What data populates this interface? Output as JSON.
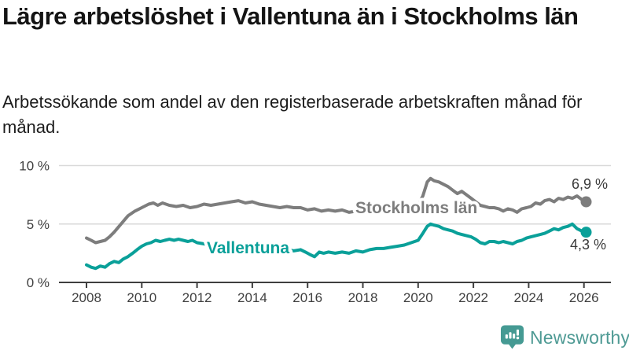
{
  "title": "Lägre arbetslöshet i Vallentuna än i Stockholms län",
  "subtitle": "Arbetssökande som andel av den registerbaserade arbetskraften månad för månad.",
  "branding": {
    "logo_text": "Newsworthy",
    "logo_icon": "newsworthy-speech-bubble-bars-icon",
    "logo_text_color": "#4e9a94",
    "logo_icon_color": "#459a93"
  },
  "colors": {
    "stockholm_line": "#7d7d7d",
    "vallentuna_line": "#0aa099",
    "axis": "#3f3f3f",
    "gridline": "#d9d9d9",
    "end_label_text": "#3a3a3a"
  },
  "chart_data": {
    "type": "line",
    "title": "Lägre arbetslöshet i Vallentuna än i Stockholms län",
    "subtitle": "Arbetssökande som andel av den registerbaserade arbetskraften månad för månad.",
    "xlabel": "",
    "ylabel": "",
    "xlim": [
      2007.0,
      2027.0
    ],
    "ylim": [
      0,
      10
    ],
    "grid": "horizontal",
    "legend_position": "inline-on-line",
    "x_axis": {
      "ticks": [
        "2008",
        "2010",
        "2012",
        "2014",
        "2016",
        "2018",
        "2020",
        "2022",
        "2024",
        "2026"
      ]
    },
    "y_axis": {
      "ticks": [
        {
          "value": 0,
          "label": "0 %"
        },
        {
          "value": 5,
          "label": "5 %"
        },
        {
          "value": 10,
          "label": "10 %"
        }
      ]
    },
    "series": [
      {
        "name": "Stockholms län",
        "color": "#7d7d7d",
        "end_label": "6,9 %",
        "latest_value_pct": 6.9,
        "points": [
          [
            2008.0,
            3.8
          ],
          [
            2008.17,
            3.6
          ],
          [
            2008.33,
            3.4
          ],
          [
            2008.5,
            3.5
          ],
          [
            2008.67,
            3.6
          ],
          [
            2008.83,
            3.9
          ],
          [
            2009.0,
            4.3
          ],
          [
            2009.25,
            5.0
          ],
          [
            2009.5,
            5.7
          ],
          [
            2009.75,
            6.1
          ],
          [
            2010.0,
            6.4
          ],
          [
            2010.25,
            6.7
          ],
          [
            2010.42,
            6.8
          ],
          [
            2010.58,
            6.6
          ],
          [
            2010.75,
            6.8
          ],
          [
            2011.0,
            6.6
          ],
          [
            2011.25,
            6.5
          ],
          [
            2011.5,
            6.6
          ],
          [
            2011.75,
            6.4
          ],
          [
            2012.0,
            6.5
          ],
          [
            2012.25,
            6.7
          ],
          [
            2012.5,
            6.6
          ],
          [
            2012.75,
            6.7
          ],
          [
            2013.0,
            6.8
          ],
          [
            2013.25,
            6.9
          ],
          [
            2013.5,
            7.0
          ],
          [
            2013.75,
            6.8
          ],
          [
            2014.0,
            6.9
          ],
          [
            2014.25,
            6.7
          ],
          [
            2014.5,
            6.6
          ],
          [
            2014.75,
            6.5
          ],
          [
            2015.0,
            6.4
          ],
          [
            2015.25,
            6.5
          ],
          [
            2015.5,
            6.4
          ],
          [
            2015.75,
            6.4
          ],
          [
            2016.0,
            6.2
          ],
          [
            2016.25,
            6.3
          ],
          [
            2016.5,
            6.1
          ],
          [
            2016.75,
            6.2
          ],
          [
            2017.0,
            6.1
          ],
          [
            2017.25,
            6.2
          ],
          [
            2017.5,
            6.0
          ],
          [
            2017.75,
            6.1
          ],
          [
            2018.0,
            6.0
          ],
          [
            2018.25,
            6.1
          ],
          [
            2018.5,
            6.0
          ],
          [
            2018.75,
            6.0
          ],
          [
            2019.0,
            6.1
          ],
          [
            2019.25,
            6.0
          ],
          [
            2019.5,
            6.1
          ],
          [
            2019.75,
            6.3
          ],
          [
            2020.0,
            6.6
          ],
          [
            2020.17,
            7.4
          ],
          [
            2020.33,
            8.6
          ],
          [
            2020.45,
            8.9
          ],
          [
            2020.58,
            8.7
          ],
          [
            2020.75,
            8.6
          ],
          [
            2020.92,
            8.4
          ],
          [
            2021.08,
            8.2
          ],
          [
            2021.25,
            7.9
          ],
          [
            2021.42,
            7.6
          ],
          [
            2021.58,
            7.8
          ],
          [
            2021.75,
            7.5
          ],
          [
            2021.92,
            7.2
          ],
          [
            2022.08,
            6.9
          ],
          [
            2022.25,
            6.6
          ],
          [
            2022.42,
            6.5
          ],
          [
            2022.58,
            6.4
          ],
          [
            2022.75,
            6.4
          ],
          [
            2022.92,
            6.3
          ],
          [
            2023.08,
            6.1
          ],
          [
            2023.25,
            6.3
          ],
          [
            2023.42,
            6.2
          ],
          [
            2023.58,
            6.0
          ],
          [
            2023.75,
            6.3
          ],
          [
            2023.92,
            6.4
          ],
          [
            2024.08,
            6.5
          ],
          [
            2024.25,
            6.8
          ],
          [
            2024.42,
            6.7
          ],
          [
            2024.58,
            7.0
          ],
          [
            2024.75,
            7.1
          ],
          [
            2024.92,
            6.9
          ],
          [
            2025.08,
            7.2
          ],
          [
            2025.25,
            7.1
          ],
          [
            2025.42,
            7.3
          ],
          [
            2025.58,
            7.2
          ],
          [
            2025.75,
            7.4
          ],
          [
            2025.92,
            7.1
          ],
          [
            2026.08,
            6.9
          ]
        ]
      },
      {
        "name": "Vallentuna",
        "color": "#0aa099",
        "end_label": "4,3 %",
        "latest_value_pct": 4.3,
        "points": [
          [
            2008.0,
            1.5
          ],
          [
            2008.17,
            1.3
          ],
          [
            2008.33,
            1.2
          ],
          [
            2008.5,
            1.4
          ],
          [
            2008.67,
            1.3
          ],
          [
            2008.83,
            1.6
          ],
          [
            2009.0,
            1.8
          ],
          [
            2009.17,
            1.7
          ],
          [
            2009.33,
            2.0
          ],
          [
            2009.5,
            2.2
          ],
          [
            2009.67,
            2.5
          ],
          [
            2009.83,
            2.8
          ],
          [
            2010.0,
            3.1
          ],
          [
            2010.17,
            3.3
          ],
          [
            2010.33,
            3.4
          ],
          [
            2010.5,
            3.6
          ],
          [
            2010.67,
            3.5
          ],
          [
            2010.83,
            3.6
          ],
          [
            2011.0,
            3.7
          ],
          [
            2011.17,
            3.6
          ],
          [
            2011.33,
            3.7
          ],
          [
            2011.5,
            3.6
          ],
          [
            2011.67,
            3.5
          ],
          [
            2011.83,
            3.6
          ],
          [
            2012.0,
            3.4
          ],
          [
            2012.25,
            3.3
          ],
          [
            2012.5,
            3.2
          ],
          [
            2012.75,
            3.1
          ],
          [
            2013.0,
            3.2
          ],
          [
            2013.25,
            3.3
          ],
          [
            2013.5,
            3.2
          ],
          [
            2013.75,
            3.1
          ],
          [
            2014.0,
            3.1
          ],
          [
            2014.25,
            3.0
          ],
          [
            2014.5,
            2.9
          ],
          [
            2014.75,
            2.9
          ],
          [
            2015.0,
            2.8
          ],
          [
            2015.25,
            2.8
          ],
          [
            2015.5,
            2.7
          ],
          [
            2015.75,
            2.8
          ],
          [
            2015.92,
            2.6
          ],
          [
            2016.08,
            2.4
          ],
          [
            2016.25,
            2.2
          ],
          [
            2016.42,
            2.6
          ],
          [
            2016.58,
            2.5
          ],
          [
            2016.75,
            2.6
          ],
          [
            2017.0,
            2.5
          ],
          [
            2017.25,
            2.6
          ],
          [
            2017.5,
            2.5
          ],
          [
            2017.75,
            2.7
          ],
          [
            2018.0,
            2.6
          ],
          [
            2018.25,
            2.8
          ],
          [
            2018.5,
            2.9
          ],
          [
            2018.75,
            2.9
          ],
          [
            2019.0,
            3.0
          ],
          [
            2019.25,
            3.1
          ],
          [
            2019.5,
            3.2
          ],
          [
            2019.75,
            3.4
          ],
          [
            2020.0,
            3.6
          ],
          [
            2020.17,
            4.2
          ],
          [
            2020.33,
            4.8
          ],
          [
            2020.45,
            5.0
          ],
          [
            2020.58,
            4.9
          ],
          [
            2020.75,
            4.8
          ],
          [
            2020.92,
            4.6
          ],
          [
            2021.08,
            4.5
          ],
          [
            2021.25,
            4.4
          ],
          [
            2021.42,
            4.2
          ],
          [
            2021.58,
            4.1
          ],
          [
            2021.75,
            4.0
          ],
          [
            2021.92,
            3.9
          ],
          [
            2022.08,
            3.7
          ],
          [
            2022.25,
            3.4
          ],
          [
            2022.42,
            3.3
          ],
          [
            2022.58,
            3.5
          ],
          [
            2022.75,
            3.5
          ],
          [
            2022.92,
            3.4
          ],
          [
            2023.08,
            3.5
          ],
          [
            2023.25,
            3.4
          ],
          [
            2023.42,
            3.3
          ],
          [
            2023.58,
            3.5
          ],
          [
            2023.75,
            3.6
          ],
          [
            2023.92,
            3.8
          ],
          [
            2024.08,
            3.9
          ],
          [
            2024.25,
            4.0
          ],
          [
            2024.42,
            4.1
          ],
          [
            2024.58,
            4.2
          ],
          [
            2024.75,
            4.4
          ],
          [
            2024.92,
            4.6
          ],
          [
            2025.08,
            4.5
          ],
          [
            2025.25,
            4.7
          ],
          [
            2025.42,
            4.8
          ],
          [
            2025.58,
            5.0
          ],
          [
            2025.75,
            4.6
          ],
          [
            2025.92,
            4.4
          ],
          [
            2026.08,
            4.3
          ]
        ]
      }
    ]
  }
}
